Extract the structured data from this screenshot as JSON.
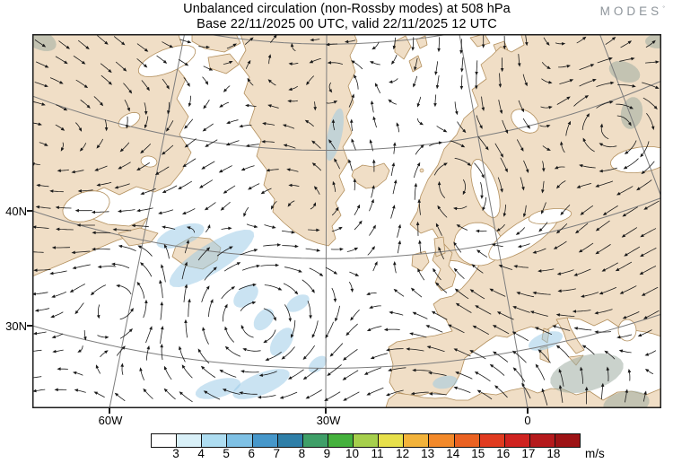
{
  "header": {
    "title": "Unbalanced circulation (non-Rossby modes) at 508 hPa",
    "subtitle": "Base 22/11/2025 00 UTC, valid 22/11/2025 12 UTC",
    "logo_text": "MODES",
    "logo_mark": "°"
  },
  "map": {
    "y_tick_labels": [
      "40N",
      "30N"
    ],
    "x_tick_labels": [
      "60W",
      "30W",
      "0"
    ],
    "land_color": "#f0dec6",
    "coast_color": "#b3905e",
    "ocean_color": "#ffffff",
    "graticule_color": "#7d7d7d",
    "arrow_color": "#1a1a1a",
    "border_color": "#1c1c1c"
  },
  "colorbar": {
    "unit": "m/s",
    "labels": [
      "3",
      "4",
      "5",
      "6",
      "7",
      "8",
      "9",
      "10",
      "11",
      "12",
      "13",
      "14",
      "15",
      "16",
      "17",
      "18"
    ],
    "colors": [
      "#ffffff",
      "#d9f0f8",
      "#aeddf1",
      "#7fc1e5",
      "#4697ca",
      "#2f7fa8",
      "#3f9f68",
      "#45b13d",
      "#a6cf4c",
      "#e7e04b",
      "#f3b33b",
      "#f2892a",
      "#ea6222",
      "#e03b20",
      "#cf2320",
      "#b51a1c",
      "#9d1315"
    ]
  },
  "chart_data": {
    "type": "vector_field_map",
    "title": "Unbalanced circulation (non-Rossby modes) at 508 hPa",
    "pressure_level_hPa": 508,
    "base_time": "22/11/2025 00 UTC",
    "valid_time": "22/11/2025 12 UTC",
    "source_logo": "MODES",
    "region": "North Atlantic, Greenland, Iceland, Europe, NW Africa",
    "projection": "conic/polar view; meridians fan from top, parallels are shallow arcs",
    "x_tick_labels": [
      "60W",
      "30W",
      "0"
    ],
    "y_tick_labels": [
      "40N",
      "30N"
    ],
    "field": "horizontal unbalanced wind vectors drawn as small curved black arrows on a ~23 px grid; light-blue shading marks speeds in the 3-5 m/s range",
    "colorbar": {
      "unit": "m/s",
      "levels": [
        3,
        4,
        5,
        6,
        7,
        8,
        9,
        10,
        11,
        12,
        13,
        14,
        15,
        16,
        17,
        18
      ],
      "colors": [
        "#ffffff",
        "#d9f0f8",
        "#aeddf1",
        "#7fc1e5",
        "#4697ca",
        "#2f7fa8",
        "#3f9f68",
        "#45b13d",
        "#a6cf4c",
        "#e7e04b",
        "#f3b33b",
        "#f2892a",
        "#ea6222",
        "#e03b20",
        "#cf2320",
        "#b51a1c",
        "#9d1315"
      ]
    },
    "shaded_features": [
      "elongated 3-5 m/s streak off Newfoundland extending into the mid-Atlantic",
      "patchy 3-4 m/s band across the central subtropical Atlantic near 30N",
      "3-4 m/s patches over Algeria / NW Africa and near the western Mediterranean",
      "small shaded areas east of Svalbard, along east Greenland and in the map corners"
    ],
    "flow_features": [
      "closed swirl over northern Scandinavia / Barents region",
      "cyclonic curvature in mid-Atlantic arrows near 35N 40W",
      "mostly westward-pointing arrows south of 40N",
      "northeastward arrows over NW Africa"
    ]
  }
}
